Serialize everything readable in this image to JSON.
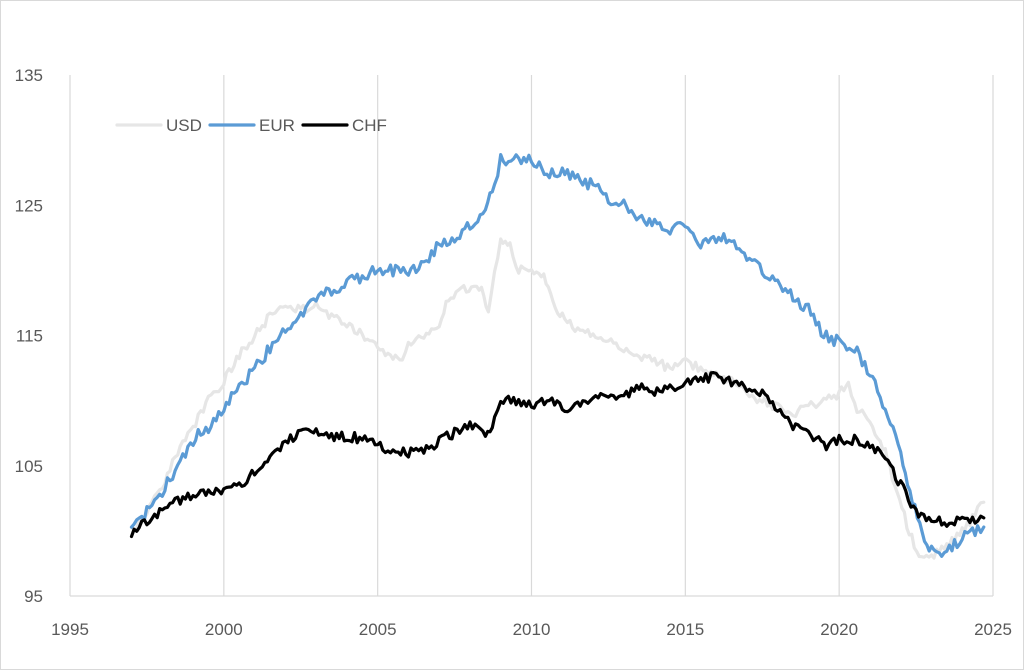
{
  "chart_data": {
    "type": "line",
    "title": "",
    "xlabel": "",
    "ylabel": "",
    "xlim": [
      1995,
      2025
    ],
    "ylim": [
      95,
      135
    ],
    "x_ticks": [
      1995,
      2000,
      2005,
      2010,
      2015,
      2020,
      2025
    ],
    "y_ticks": [
      95,
      105,
      115,
      125,
      135
    ],
    "x_tick_labels": [
      "1995",
      "2000",
      "2005",
      "2010",
      "2015",
      "2020",
      "2025"
    ],
    "y_tick_labels": [
      "95",
      "105",
      "115",
      "125",
      "135"
    ],
    "grid": "vertical",
    "legend_position": "top-left",
    "series": [
      {
        "name": "USD",
        "color": "#e6e6e6",
        "points": [
          [
            1997.0,
            100.0
          ],
          [
            1997.5,
            101.5
          ],
          [
            1998.0,
            103.5
          ],
          [
            1998.5,
            106.0
          ],
          [
            1999.0,
            108.0
          ],
          [
            1999.5,
            110.0
          ],
          [
            2000.0,
            111.5
          ],
          [
            2000.5,
            113.5
          ],
          [
            2001.0,
            115.0
          ],
          [
            2001.5,
            116.5
          ],
          [
            2002.0,
            117.5
          ],
          [
            2002.5,
            117.0
          ],
          [
            2003.0,
            117.3
          ],
          [
            2003.5,
            116.5
          ],
          [
            2004.0,
            116.0
          ],
          [
            2004.5,
            115.0
          ],
          [
            2005.0,
            114.0
          ],
          [
            2005.5,
            113.5
          ],
          [
            2005.8,
            112.8
          ],
          [
            2006.0,
            114.5
          ],
          [
            2006.5,
            115.0
          ],
          [
            2007.0,
            116.0
          ],
          [
            2007.3,
            118.0
          ],
          [
            2007.8,
            118.5
          ],
          [
            2008.3,
            118.8
          ],
          [
            2008.6,
            117.0
          ],
          [
            2008.8,
            120.0
          ],
          [
            2009.0,
            122.5
          ],
          [
            2009.3,
            122.0
          ],
          [
            2009.5,
            120.0
          ],
          [
            2010.0,
            120.0
          ],
          [
            2010.4,
            119.5
          ],
          [
            2010.7,
            117.5
          ],
          [
            2011.0,
            116.5
          ],
          [
            2011.5,
            115.5
          ],
          [
            2012.0,
            115.0
          ],
          [
            2012.5,
            114.5
          ],
          [
            2013.0,
            114.0
          ],
          [
            2013.5,
            113.5
          ],
          [
            2014.0,
            113.0
          ],
          [
            2014.5,
            112.5
          ],
          [
            2015.0,
            113.0
          ],
          [
            2015.5,
            112.5
          ],
          [
            2016.0,
            112.0
          ],
          [
            2016.5,
            111.5
          ],
          [
            2017.0,
            110.5
          ],
          [
            2017.5,
            110.0
          ],
          [
            2018.0,
            109.5
          ],
          [
            2018.5,
            109.0
          ],
          [
            2019.0,
            109.5
          ],
          [
            2019.5,
            110.0
          ],
          [
            2020.0,
            110.5
          ],
          [
            2020.3,
            111.5
          ],
          [
            2020.5,
            109.5
          ],
          [
            2021.0,
            108.5
          ],
          [
            2021.5,
            106.0
          ],
          [
            2021.8,
            103.5
          ],
          [
            2022.2,
            100.5
          ],
          [
            2022.6,
            97.8
          ],
          [
            2023.0,
            98.0
          ],
          [
            2023.5,
            99.0
          ],
          [
            2024.0,
            100.0
          ],
          [
            2024.5,
            101.5
          ],
          [
            2024.7,
            102.2
          ]
        ]
      },
      {
        "name": "EUR",
        "color": "#5b9bd5",
        "points": [
          [
            1997.0,
            100.0
          ],
          [
            1997.5,
            101.5
          ],
          [
            1998.0,
            103.0
          ],
          [
            1998.5,
            105.0
          ],
          [
            1999.0,
            107.0
          ],
          [
            1999.5,
            108.0
          ],
          [
            2000.0,
            109.5
          ],
          [
            2000.5,
            111.0
          ],
          [
            2001.0,
            112.5
          ],
          [
            2001.5,
            114.0
          ],
          [
            2002.0,
            115.5
          ],
          [
            2002.5,
            116.5
          ],
          [
            2003.0,
            118.0
          ],
          [
            2003.5,
            118.5
          ],
          [
            2004.0,
            119.0
          ],
          [
            2004.5,
            119.5
          ],
          [
            2005.0,
            120.0
          ],
          [
            2005.5,
            120.0
          ],
          [
            2006.0,
            120.0
          ],
          [
            2006.5,
            120.5
          ],
          [
            2007.0,
            122.0
          ],
          [
            2007.5,
            122.5
          ],
          [
            2008.0,
            123.5
          ],
          [
            2008.5,
            124.5
          ],
          [
            2008.8,
            126.5
          ],
          [
            2009.0,
            128.5
          ],
          [
            2009.5,
            128.5
          ],
          [
            2010.0,
            128.5
          ],
          [
            2010.5,
            127.5
          ],
          [
            2011.0,
            127.5
          ],
          [
            2011.5,
            127.0
          ],
          [
            2012.0,
            126.5
          ],
          [
            2012.5,
            125.5
          ],
          [
            2013.0,
            125.0
          ],
          [
            2013.5,
            124.0
          ],
          [
            2014.0,
            123.5
          ],
          [
            2014.5,
            123.0
          ],
          [
            2015.0,
            123.5
          ],
          [
            2015.5,
            122.0
          ],
          [
            2016.0,
            122.5
          ],
          [
            2016.5,
            122.5
          ],
          [
            2017.0,
            121.0
          ],
          [
            2017.5,
            120.0
          ],
          [
            2018.0,
            119.0
          ],
          [
            2018.5,
            118.0
          ],
          [
            2019.0,
            117.0
          ],
          [
            2019.5,
            115.0
          ],
          [
            2020.0,
            114.5
          ],
          [
            2020.5,
            114.0
          ],
          [
            2021.0,
            112.0
          ],
          [
            2021.5,
            109.5
          ],
          [
            2022.0,
            106.0
          ],
          [
            2022.3,
            103.0
          ],
          [
            2022.7,
            100.0
          ],
          [
            2023.0,
            98.5
          ],
          [
            2023.5,
            98.5
          ],
          [
            2024.0,
            99.5
          ],
          [
            2024.5,
            100.0
          ],
          [
            2024.7,
            100.3
          ]
        ]
      },
      {
        "name": "CHF",
        "color": "#000000",
        "points": [
          [
            1997.0,
            99.8
          ],
          [
            1997.5,
            100.7
          ],
          [
            1998.0,
            101.5
          ],
          [
            1998.5,
            102.3
          ],
          [
            1999.0,
            102.8
          ],
          [
            1999.5,
            103.0
          ],
          [
            2000.0,
            103.0
          ],
          [
            2000.5,
            103.5
          ],
          [
            2001.0,
            104.5
          ],
          [
            2001.5,
            105.5
          ],
          [
            2002.0,
            107.0
          ],
          [
            2002.5,
            107.5
          ],
          [
            2003.0,
            107.5
          ],
          [
            2003.5,
            107.3
          ],
          [
            2004.0,
            107.3
          ],
          [
            2004.5,
            107.0
          ],
          [
            2005.0,
            106.5
          ],
          [
            2005.5,
            106.3
          ],
          [
            2006.0,
            106.0
          ],
          [
            2006.5,
            106.0
          ],
          [
            2007.0,
            107.0
          ],
          [
            2007.5,
            107.5
          ],
          [
            2008.0,
            108.0
          ],
          [
            2008.5,
            107.5
          ],
          [
            2008.8,
            108.5
          ],
          [
            2009.0,
            110.0
          ],
          [
            2009.5,
            110.0
          ],
          [
            2010.0,
            109.5
          ],
          [
            2010.5,
            110.0
          ],
          [
            2011.0,
            109.5
          ],
          [
            2011.5,
            109.5
          ],
          [
            2012.0,
            110.0
          ],
          [
            2012.5,
            110.5
          ],
          [
            2013.0,
            110.5
          ],
          [
            2013.5,
            111.0
          ],
          [
            2014.0,
            110.8
          ],
          [
            2014.5,
            111.0
          ],
          [
            2015.0,
            111.5
          ],
          [
            2015.5,
            111.5
          ],
          [
            2016.0,
            112.0
          ],
          [
            2016.5,
            111.5
          ],
          [
            2017.0,
            111.0
          ],
          [
            2017.5,
            110.5
          ],
          [
            2018.0,
            109.5
          ],
          [
            2018.5,
            108.0
          ],
          [
            2019.0,
            107.5
          ],
          [
            2019.5,
            106.5
          ],
          [
            2020.0,
            107.0
          ],
          [
            2020.5,
            107.0
          ],
          [
            2021.0,
            106.5
          ],
          [
            2021.5,
            105.5
          ],
          [
            2022.0,
            103.5
          ],
          [
            2022.5,
            101.5
          ],
          [
            2023.0,
            101.0
          ],
          [
            2023.5,
            100.5
          ],
          [
            2024.0,
            101.0
          ],
          [
            2024.5,
            100.8
          ],
          [
            2024.7,
            101.0
          ]
        ]
      }
    ]
  }
}
